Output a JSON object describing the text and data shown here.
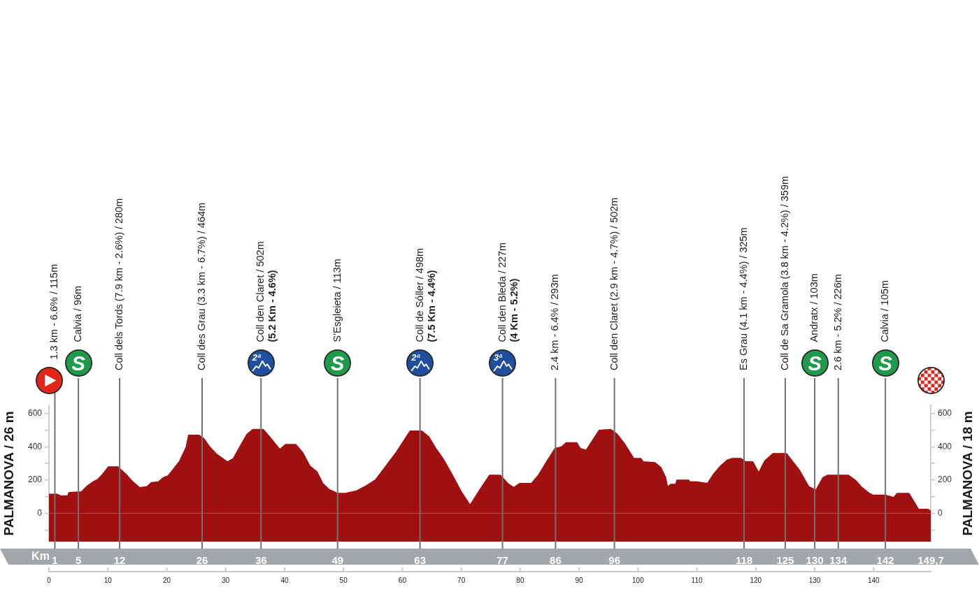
{
  "chart_data": {
    "type": "area",
    "ylabel": "PALMANOVA / 26 m",
    "y2label": "PALMANOVA / 18 m",
    "x2label": "Km",
    "x": [
      0,
      1.4,
      2,
      3.2,
      3.4,
      5.5,
      6.5,
      7.5,
      8.3,
      9.1,
      10.1,
      11.7,
      13.1,
      14.1,
      15.4,
      16.6,
      17.4,
      18.6,
      19.4,
      20.2,
      21,
      22.2,
      23.3,
      23.7,
      25.5,
      26.3,
      27.3,
      28.5,
      30.3,
      31.3,
      32.4,
      33.6,
      34.6,
      36.4,
      37.6,
      39.2,
      40.2,
      41.9,
      43.1,
      44.3,
      45.5,
      46.5,
      47.5,
      49,
      50.3,
      52.2,
      53.8,
      55.4,
      57,
      59,
      61.3,
      63.3,
      64.5,
      65.7,
      66.9,
      68.5,
      70,
      71.5,
      73.2,
      74.8,
      76.6,
      77.9,
      78.9,
      79.9,
      81.9,
      83.1,
      84.3,
      85.9,
      87,
      87.8,
      89.6,
      90.2,
      91.2,
      93.4,
      95.4,
      96.5,
      97.7,
      99.3,
      100.5,
      100.9,
      102.9,
      103.9,
      104.7,
      105,
      105.6,
      106.4,
      106.6,
      108.6,
      108.8,
      110,
      111.8,
      112.8,
      114,
      115.1,
      115.9,
      117.5,
      118.3,
      119.5,
      120.5,
      121.5,
      122.9,
      125.2,
      126.2,
      127.4,
      129,
      130.2,
      131.4,
      132.2,
      135.7,
      136.9,
      137.9,
      139.3,
      139.9,
      142,
      143.4,
      144,
      146,
      147.2,
      147.6,
      149.2,
      149.7
    ],
    "series": [
      {
        "color": "#a01010",
        "values": [
          115,
          115,
          105,
          105,
          125,
          130,
          165,
          190,
          205,
          235,
          280,
          280,
          235,
          195,
          155,
          160,
          185,
          190,
          215,
          225,
          260,
          315,
          400,
          470,
          470,
          450,
          400,
          355,
          310,
          330,
          400,
          475,
          505,
          505,
          455,
          385,
          415,
          415,
          365,
          285,
          250,
          180,
          145,
          120,
          120,
          135,
          165,
          200,
          275,
          370,
          495,
          495,
          460,
          390,
          330,
          230,
          130,
          50,
          145,
          230,
          230,
          180,
          155,
          180,
          180,
          230,
          300,
          390,
          400,
          425,
          425,
          390,
          380,
          500,
          505,
          475,
          420,
          330,
          330,
          310,
          305,
          275,
          215,
          160,
          175,
          175,
          200,
          200,
          190,
          190,
          180,
          235,
          285,
          320,
          330,
          330,
          310,
          310,
          245,
          315,
          360,
          360,
          315,
          260,
          160,
          140,
          215,
          230,
          230,
          200,
          160,
          120,
          110,
          110,
          95,
          120,
          120,
          50,
          25,
          25,
          15
        ]
      }
    ],
    "bands": [
      {
        "axis": "y",
        "from": -170,
        "to": 0,
        "color": "#a01010"
      }
    ],
    "grid": "x",
    "xlim": [
      0,
      149.7
    ],
    "xticks": [
      0,
      10,
      20,
      30,
      40,
      50,
      60,
      70,
      80,
      90,
      100,
      110,
      120,
      130,
      140
    ],
    "x2lim": [
      0,
      149.7
    ],
    "x2ticks": [
      1,
      5,
      12,
      26,
      36,
      49,
      63,
      77,
      86,
      96,
      118,
      125,
      130,
      134,
      142,
      {
        "value": 149.7,
        "label": "149,7"
      }
    ],
    "ylim": [
      -170,
      650
    ],
    "yticks": [
      {
        "value": -100,
        "label": null
      },
      0,
      {
        "value": 100,
        "label": null
      },
      200,
      {
        "value": 300,
        "label": null
      },
      400,
      {
        "value": 500,
        "label": null
      },
      600
    ],
    "y2lim": [
      -170,
      650
    ],
    "y2ticks": [
      {
        "value": -100,
        "label": null
      },
      0,
      {
        "value": 100,
        "label": null
      },
      200,
      {
        "value": 300,
        "label": null
      },
      400,
      {
        "value": 500,
        "label": null
      },
      600
    ],
    "annotations": [
      "1.3 km - 6.6% / 115m",
      "Calvia / 96m",
      "Coll dels Tords (7.9 km - 2.6%) / 280m",
      "Coll des Grau (3.3 km - 6.7%) / 464m",
      "Coll den Claret / 502m\n(5.2 Km - 4.6%)",
      "S'Esgleieta / 113m",
      "Coll de Sóller / 498m\n(7.5 Km - 4.4%)",
      "Coll den Bleda / 227m\n(4 Km - 5.2%)",
      "2.4 km - 6.4% / 293m",
      "Coll den Claret (2.9 km - 4.7%) / 502m",
      "Es Grau (4.1 km - 4.4%) / 325m",
      "Coll de Sa Gramola (3.8 km - 4.2%) / 359m",
      "Andratx / 103m",
      "2.6 km - 5.2% / 226m",
      "Calvia / 105m",
      "S",
      "2ª",
      "S",
      "2ª",
      "3ª",
      "S",
      "S"
    ]
  }
}
